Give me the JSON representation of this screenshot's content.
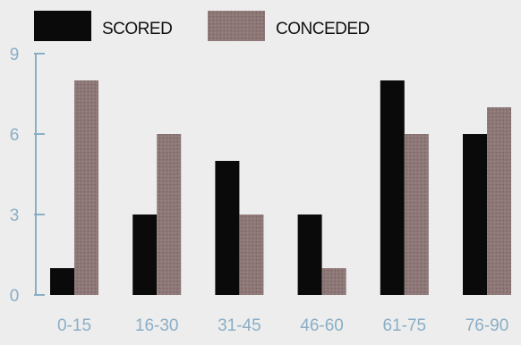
{
  "chart_data": {
    "type": "bar",
    "categories": [
      "0-15",
      "16-30",
      "31-45",
      "46-60",
      "61-75",
      "76-90"
    ],
    "series": [
      {
        "name": "SCORED",
        "values": [
          1,
          3,
          5,
          3,
          8,
          6
        ],
        "color": "#0a0a0a"
      },
      {
        "name": "CONCEDED",
        "values": [
          8,
          6,
          3,
          1,
          6,
          7
        ],
        "color": "#8c7676"
      }
    ],
    "yticks": [
      0,
      3,
      6,
      9
    ],
    "ylim": [
      0,
      9
    ],
    "grid": false,
    "legend_position": "top-left",
    "axis_label_color": "#8aaec6"
  }
}
